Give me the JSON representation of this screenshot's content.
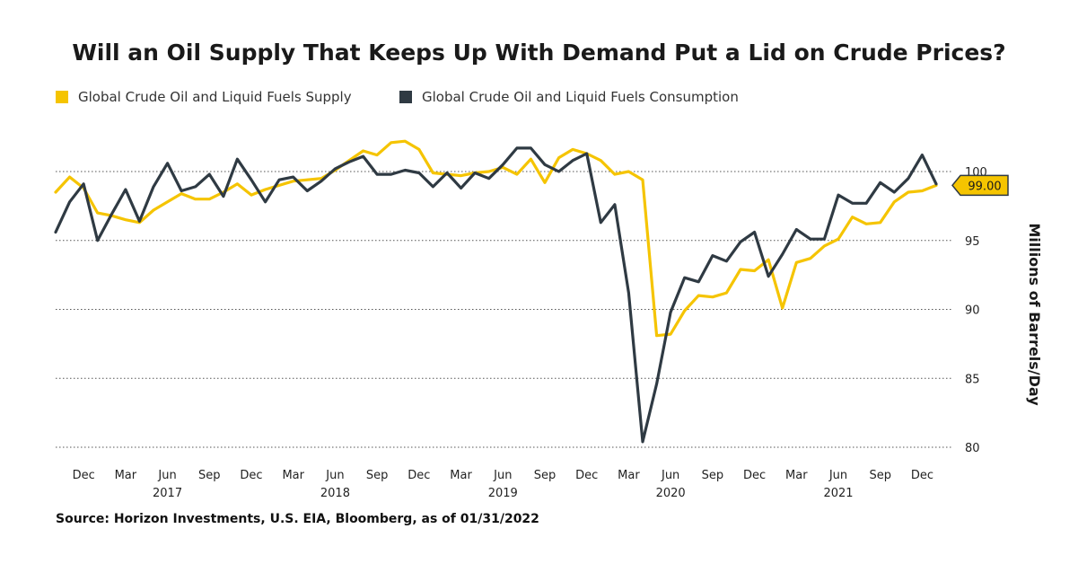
{
  "chart_data": {
    "type": "line",
    "title": "Will an Oil Supply That Keeps Up With Demand Put a Lid on Crude Prices?",
    "ylabel": "Millions of Barrels/Day",
    "ylim": [
      80,
      101.5
    ],
    "y_ticks": [
      80,
      85,
      90,
      95,
      100
    ],
    "grid": "horizontal dotted",
    "legend_position": "top-left",
    "y_axis_side": "right",
    "x": [
      "2016-10",
      "2016-11",
      "2016-12",
      "2017-01",
      "2017-02",
      "2017-03",
      "2017-04",
      "2017-05",
      "2017-06",
      "2017-07",
      "2017-08",
      "2017-09",
      "2017-10",
      "2017-11",
      "2017-12",
      "2018-01",
      "2018-02",
      "2018-03",
      "2018-04",
      "2018-05",
      "2018-06",
      "2018-07",
      "2018-08",
      "2018-09",
      "2018-10",
      "2018-11",
      "2018-12",
      "2019-01",
      "2019-02",
      "2019-03",
      "2019-04",
      "2019-05",
      "2019-06",
      "2019-07",
      "2019-08",
      "2019-09",
      "2019-10",
      "2019-11",
      "2019-12",
      "2020-01",
      "2020-02",
      "2020-03",
      "2020-04",
      "2020-05",
      "2020-06",
      "2020-07",
      "2020-08",
      "2020-09",
      "2020-10",
      "2020-11",
      "2020-12",
      "2021-01",
      "2021-02",
      "2021-03",
      "2021-04",
      "2021-05",
      "2021-06",
      "2021-07",
      "2021-08",
      "2021-09",
      "2021-10",
      "2021-11",
      "2021-12",
      "2022-01"
    ],
    "x_tick_labels": [
      {
        "x": "2016-12",
        "label": "Dec"
      },
      {
        "x": "2017-03",
        "label": "Mar"
      },
      {
        "x": "2017-06",
        "label": "Jun"
      },
      {
        "x": "2017-09",
        "label": "Sep"
      },
      {
        "x": "2017-12",
        "label": "Dec"
      },
      {
        "x": "2018-03",
        "label": "Mar"
      },
      {
        "x": "2018-06",
        "label": "Jun"
      },
      {
        "x": "2018-09",
        "label": "Sep"
      },
      {
        "x": "2018-12",
        "label": "Dec"
      },
      {
        "x": "2019-03",
        "label": "Mar"
      },
      {
        "x": "2019-06",
        "label": "Jun"
      },
      {
        "x": "2019-09",
        "label": "Sep"
      },
      {
        "x": "2019-12",
        "label": "Dec"
      },
      {
        "x": "2020-03",
        "label": "Mar"
      },
      {
        "x": "2020-06",
        "label": "Jun"
      },
      {
        "x": "2020-09",
        "label": "Sep"
      },
      {
        "x": "2020-12",
        "label": "Dec"
      },
      {
        "x": "2021-03",
        "label": "Mar"
      },
      {
        "x": "2021-06",
        "label": "Jun"
      },
      {
        "x": "2021-09",
        "label": "Sep"
      },
      {
        "x": "2021-12",
        "label": "Dec"
      }
    ],
    "year_labels": [
      {
        "x": "2017-06",
        "label": "2017"
      },
      {
        "x": "2018-06",
        "label": "2018"
      },
      {
        "x": "2019-06",
        "label": "2019"
      },
      {
        "x": "2020-06",
        "label": "2020"
      },
      {
        "x": "2021-06",
        "label": "2021"
      }
    ],
    "series": [
      {
        "name": "Global Crude Oil and Liquid Fuels Supply",
        "color": "#F5C400",
        "values": [
          98.5,
          99.6,
          98.8,
          97.0,
          96.8,
          96.5,
          96.3,
          97.2,
          97.8,
          98.4,
          98.0,
          98.0,
          98.5,
          99.1,
          98.3,
          98.7,
          99.0,
          99.3,
          99.4,
          99.5,
          100.1,
          100.8,
          101.5,
          101.2,
          102.1,
          102.2,
          101.6,
          99.9,
          99.8,
          99.7,
          99.9,
          100.0,
          100.3,
          99.8,
          100.9,
          99.2,
          101.0,
          101.6,
          101.3,
          100.8,
          99.8,
          100.0,
          99.4,
          88.1,
          88.2,
          89.9,
          91.0,
          90.9,
          91.2,
          92.9,
          92.8,
          93.6,
          90.1,
          93.4,
          93.7,
          94.6,
          95.1,
          96.7,
          96.2,
          96.3,
          97.8,
          98.5,
          98.6,
          99.0
        ]
      },
      {
        "name": "Global Crude Oil and Liquid Fuels Consumption",
        "color": "#2F3A43",
        "values": [
          95.6,
          97.8,
          99.1,
          95.0,
          96.9,
          98.7,
          96.4,
          98.9,
          100.6,
          98.6,
          98.9,
          99.8,
          98.2,
          100.9,
          99.4,
          97.8,
          99.4,
          99.6,
          98.6,
          99.3,
          100.2,
          100.7,
          101.1,
          99.8,
          99.8,
          100.1,
          99.9,
          98.9,
          99.9,
          98.8,
          99.9,
          99.5,
          100.5,
          101.7,
          101.7,
          100.5,
          100.0,
          100.8,
          101.3,
          96.3,
          97.6,
          91.2,
          80.4,
          84.6,
          89.8,
          92.3,
          92.0,
          93.9,
          93.5,
          94.9,
          95.6,
          92.4,
          94.0,
          95.8,
          95.1,
          95.1,
          98.3,
          97.7,
          97.7,
          99.2,
          98.5,
          99.5,
          101.2,
          99.1
        ]
      }
    ],
    "end_label": "99.00"
  },
  "source": "Source: Horizon Investments, U.S. EIA, Bloomberg, as of 01/31/2022"
}
